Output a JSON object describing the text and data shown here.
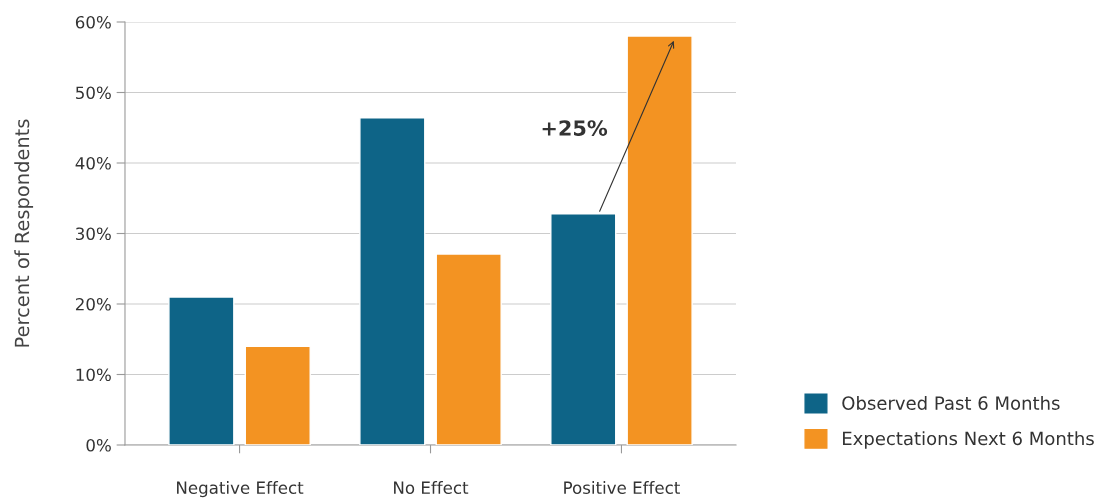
{
  "chart_data": {
    "type": "bar",
    "ylabel": "Percent of Respondents",
    "categories": [
      "Negative Effect",
      "No Effect",
      "Positive Effect"
    ],
    "series": [
      {
        "name": "Observed Past 6 Months",
        "color": "#0e6487",
        "values": [
          21,
          46.4,
          32.8
        ]
      },
      {
        "name": "Expectations Next 6 Months",
        "color": "#f39322",
        "values": [
          14,
          27.1,
          58
        ]
      }
    ],
    "ylim": [
      0,
      60
    ],
    "yticks": [
      {
        "value": 0,
        "label": "0%"
      },
      {
        "value": 10,
        "label": "10%"
      },
      {
        "value": 20,
        "label": "20%"
      },
      {
        "value": 30,
        "label": "30%"
      },
      {
        "value": 40,
        "label": "40%"
      },
      {
        "value": 50,
        "label": "50%"
      },
      {
        "value": 60,
        "label": "60%"
      }
    ],
    "grid": "y",
    "legend": "bottom right",
    "annotations": [
      "+25%"
    ]
  }
}
